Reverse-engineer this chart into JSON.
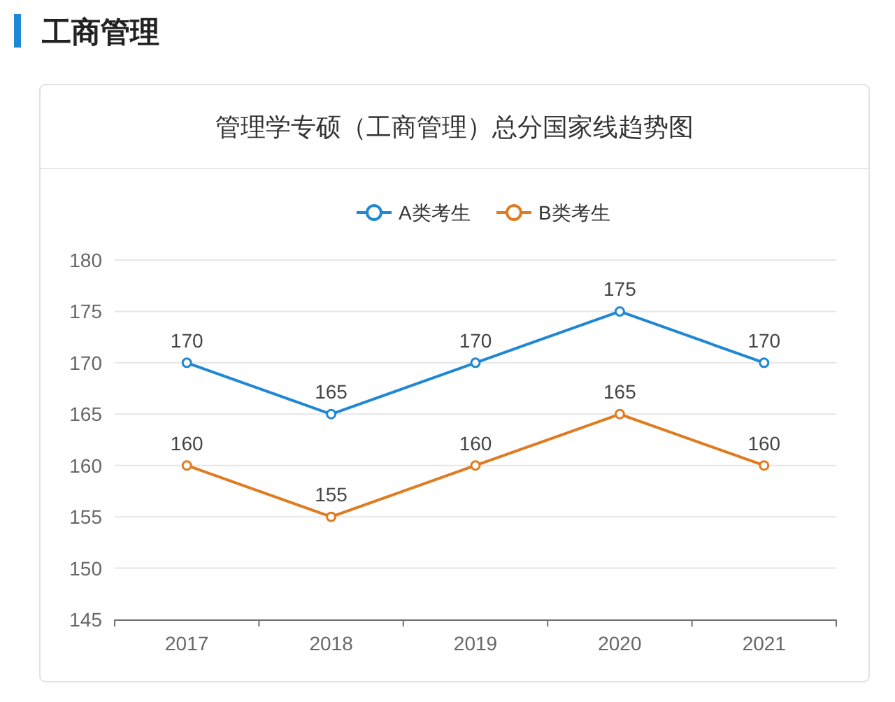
{
  "chart_data": {
    "type": "line",
    "title": "工商管理",
    "subtitle": "管理学专硕（工商管理）总分国家线趋势图",
    "categories": [
      "2017",
      "2018",
      "2019",
      "2020",
      "2021"
    ],
    "series": [
      {
        "name": "A类考生",
        "color": "#1f88d4",
        "values": [
          170,
          165,
          170,
          175,
          170
        ]
      },
      {
        "name": "B类考生",
        "color": "#e07b1f",
        "values": [
          160,
          155,
          160,
          165,
          160
        ]
      }
    ],
    "ylim": [
      145,
      180
    ],
    "yticks": [
      145,
      150,
      155,
      160,
      165,
      170,
      175,
      180
    ],
    "grid": "y",
    "legend": "top",
    "marker": "circle",
    "line_style": "solid",
    "data_labels": true
  }
}
